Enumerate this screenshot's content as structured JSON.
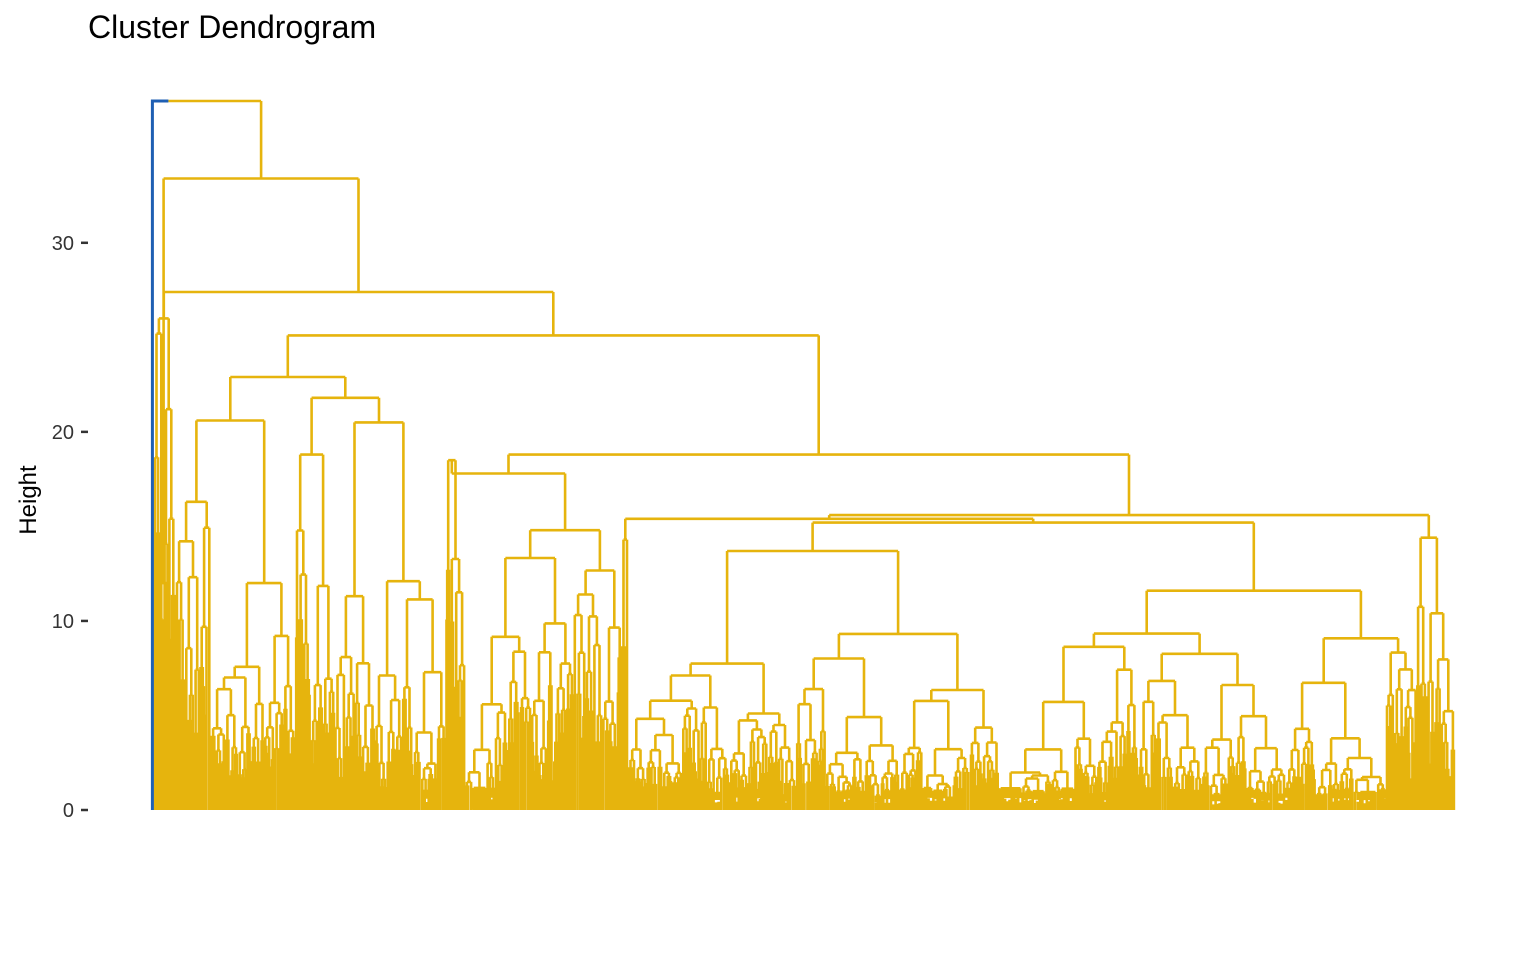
{
  "chart_data": {
    "type": "dendrogram",
    "title": "Cluster Dendrogram",
    "xlabel": "",
    "ylabel": "Height",
    "ylim": [
      0,
      37.5
    ],
    "yticks": [
      0,
      10,
      20,
      30
    ],
    "grid": false,
    "legend": "none",
    "colors": {
      "cluster_1": "#1f5fb3",
      "cluster_2": "#e6b40d"
    },
    "clusters": [
      {
        "name": "cluster_1",
        "color": "#1f5fb3",
        "leaves_fraction": 0.001,
        "height": 37.5
      },
      {
        "name": "cluster_2",
        "color": "#e6b40d",
        "leaves_fraction": 0.999,
        "height": 37.5
      }
    ],
    "major_merges": [
      {
        "height": 37.5
      },
      {
        "height": 33.4
      },
      {
        "height": 27.4
      },
      {
        "height": 25.1
      },
      {
        "height": 22.9
      },
      {
        "height": 21.8
      },
      {
        "height": 20.6
      },
      {
        "height": 18.8
      },
      {
        "height": 17.8
      },
      {
        "height": 15.6
      },
      {
        "height": 15.4
      },
      {
        "height": 15.2
      },
      {
        "height": 13.7
      },
      {
        "height": 11.6
      }
    ]
  }
}
